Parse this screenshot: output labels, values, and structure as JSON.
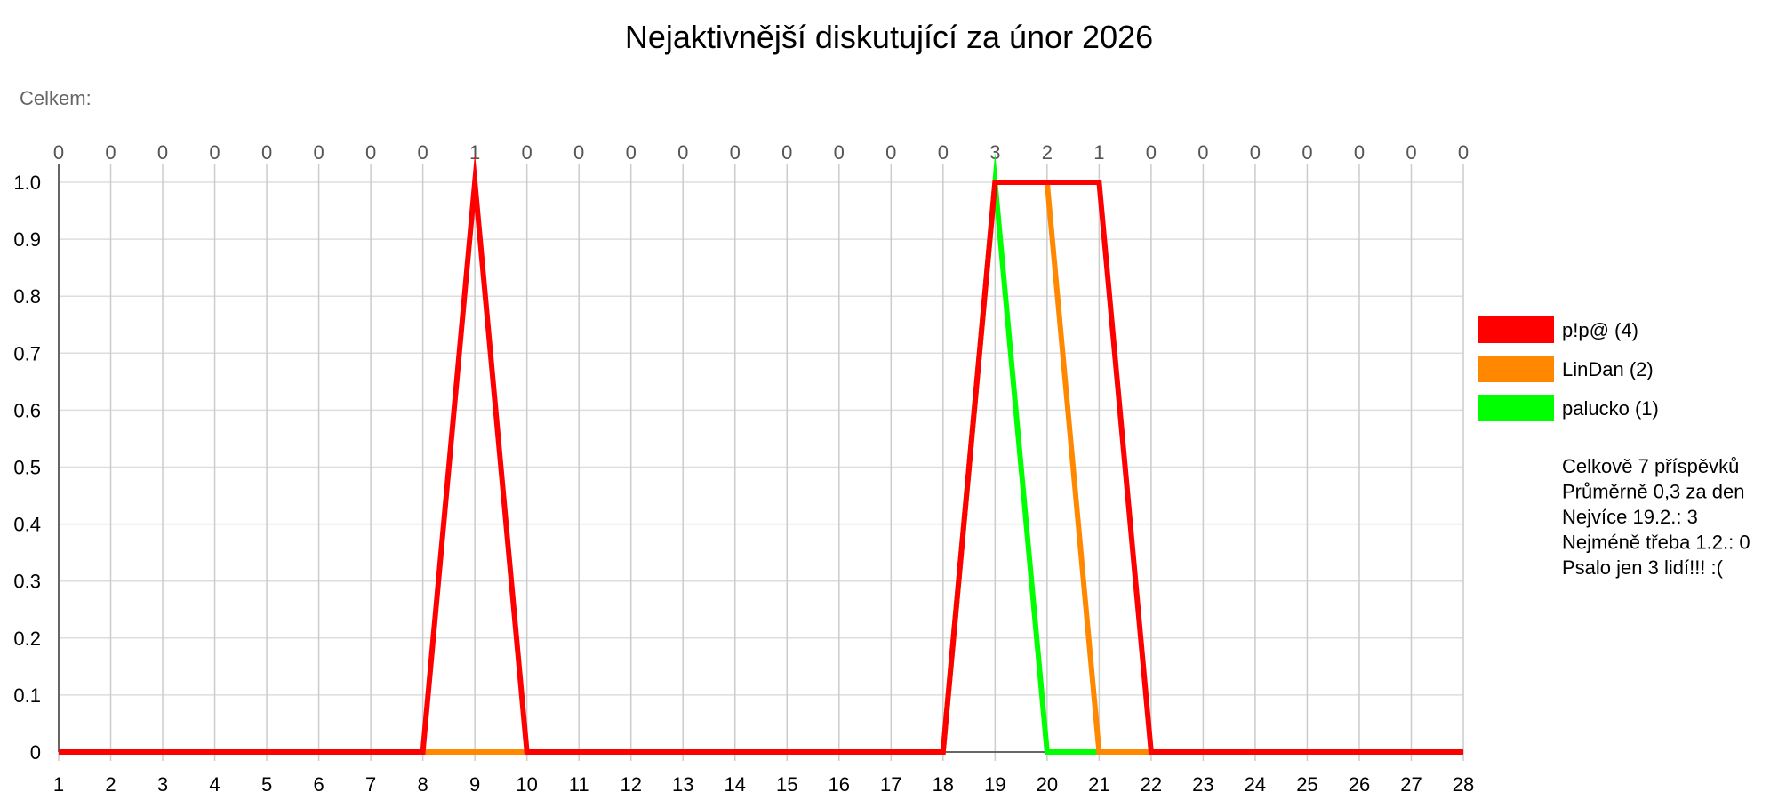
{
  "chart_data": {
    "type": "line",
    "title": "Nejaktivnější diskutující za únor 2026",
    "total_label": "Celkem:",
    "xlabel": "",
    "ylabel": "",
    "x": [
      1,
      2,
      3,
      4,
      5,
      6,
      7,
      8,
      9,
      10,
      11,
      12,
      13,
      14,
      15,
      16,
      17,
      18,
      19,
      20,
      21,
      22,
      23,
      24,
      25,
      26,
      27,
      28
    ],
    "x_tick_labels": [
      "1",
      "2",
      "3",
      "4",
      "5",
      "6",
      "7",
      "8",
      "9",
      "10",
      "11",
      "12",
      "13",
      "14",
      "15",
      "16",
      "17",
      "18",
      "19",
      "20",
      "21",
      "22",
      "23",
      "24",
      "25",
      "26",
      "27",
      "28"
    ],
    "daily_totals": [
      "0",
      "0",
      "0",
      "0",
      "0",
      "0",
      "0",
      "0",
      "1",
      "0",
      "0",
      "0",
      "0",
      "0",
      "0",
      "0",
      "0",
      "0",
      "3",
      "2",
      "1",
      "0",
      "0",
      "0",
      "0",
      "0",
      "0",
      "0"
    ],
    "ylim": [
      0,
      1.0
    ],
    "y_ticks": [
      0,
      0.1,
      0.2,
      0.3,
      0.4,
      0.5,
      0.6,
      0.7,
      0.8,
      0.9,
      1.0
    ],
    "y_tick_labels": [
      "0",
      "0.1",
      "0.2",
      "0.3",
      "0.4",
      "0.5",
      "0.6",
      "0.7",
      "0.8",
      "0.9",
      "1.0"
    ],
    "grid": true,
    "legend_position": "right",
    "series": [
      {
        "name": "palucko (1)",
        "color": "#00ff00",
        "values": [
          0,
          0,
          0,
          0,
          0,
          0,
          0,
          0,
          0,
          0,
          0,
          0,
          0,
          0,
          0,
          0,
          0,
          0,
          1,
          0,
          0,
          0,
          0,
          0,
          0,
          0,
          0,
          0
        ]
      },
      {
        "name": "LinDan (2)",
        "color": "#ff8800",
        "values": [
          0,
          0,
          0,
          0,
          0,
          0,
          0,
          0,
          0,
          0,
          0,
          0,
          0,
          0,
          0,
          0,
          0,
          0,
          1,
          1,
          0,
          0,
          0,
          0,
          0,
          0,
          0,
          0
        ]
      },
      {
        "name": "p!p@ (4)",
        "color": "#ff0000",
        "values": [
          0,
          0,
          0,
          0,
          0,
          0,
          0,
          0,
          1,
          0,
          0,
          0,
          0,
          0,
          0,
          0,
          0,
          0,
          1,
          1,
          1,
          0,
          0,
          0,
          0,
          0,
          0,
          0
        ]
      }
    ],
    "legend_order": [
      2,
      1,
      0
    ],
    "stats": [
      "Celkově 7 příspěvků",
      "Průměrně 0,3 za den",
      "Nejvíce 19.2.: 3",
      "Nejméně třeba 1.2.: 0",
      "Psalo jen 3 lidí!!! :("
    ]
  }
}
